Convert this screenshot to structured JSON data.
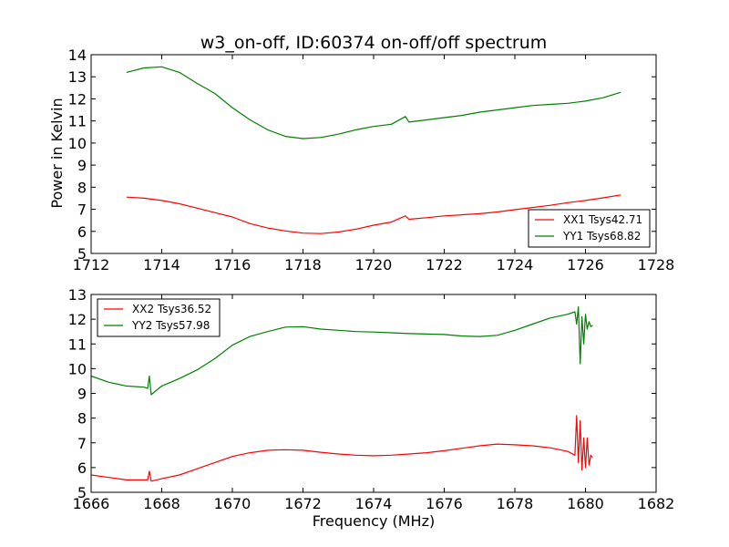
{
  "figure": {
    "title": "w3_on-off, ID:60374 on-off/off spectrum",
    "ylabel": "Power in Kelvin",
    "xlabel": "Frequency (MHz)"
  },
  "chart_data": [
    {
      "type": "line",
      "title": "w3_on-off, ID:60374 on-off/off spectrum",
      "xlabel": "",
      "ylabel": "Power in Kelvin",
      "xlim": [
        1712,
        1728
      ],
      "ylim": [
        5,
        14
      ],
      "xticks": [
        1712,
        1714,
        1716,
        1718,
        1720,
        1722,
        1724,
        1726,
        1728
      ],
      "yticks": [
        5,
        6,
        7,
        8,
        9,
        10,
        11,
        12,
        13,
        14
      ],
      "grid": false,
      "legend_position": "lower-right",
      "series": [
        {
          "name": "XX1 Tsys42.71",
          "color": "#ff0000",
          "x": [
            1713.0,
            1713.5,
            1714.0,
            1714.5,
            1715.0,
            1715.5,
            1716.0,
            1716.5,
            1717.0,
            1717.5,
            1718.0,
            1718.5,
            1719.0,
            1719.5,
            1720.0,
            1720.5,
            1720.9,
            1721.0,
            1721.5,
            1722.0,
            1722.5,
            1723.0,
            1723.5,
            1724.0,
            1724.5,
            1725.0,
            1725.5,
            1726.0,
            1726.5,
            1727.0
          ],
          "y": [
            7.55,
            7.5,
            7.4,
            7.25,
            7.05,
            6.85,
            6.65,
            6.35,
            6.15,
            6.02,
            5.92,
            5.9,
            5.97,
            6.1,
            6.28,
            6.42,
            6.7,
            6.55,
            6.62,
            6.7,
            6.75,
            6.8,
            6.88,
            6.98,
            7.08,
            7.18,
            7.3,
            7.4,
            7.52,
            7.65
          ]
        },
        {
          "name": "YY1 Tsys68.82",
          "color": "#008000",
          "x": [
            1713.0,
            1713.5,
            1714.0,
            1714.5,
            1715.0,
            1715.5,
            1716.0,
            1716.5,
            1717.0,
            1717.5,
            1718.0,
            1718.5,
            1719.0,
            1719.5,
            1720.0,
            1720.5,
            1720.9,
            1721.0,
            1721.5,
            1722.0,
            1722.5,
            1723.0,
            1723.5,
            1724.0,
            1724.5,
            1725.0,
            1725.5,
            1726.0,
            1726.5,
            1727.0
          ],
          "y": [
            13.2,
            13.4,
            13.45,
            13.2,
            12.7,
            12.25,
            11.6,
            11.05,
            10.6,
            10.3,
            10.2,
            10.25,
            10.4,
            10.6,
            10.75,
            10.85,
            11.2,
            10.95,
            11.05,
            11.15,
            11.25,
            11.4,
            11.5,
            11.6,
            11.7,
            11.75,
            11.8,
            11.9,
            12.05,
            12.3
          ]
        }
      ]
    },
    {
      "type": "line",
      "title": "",
      "xlabel": "Frequency (MHz)",
      "ylabel": "",
      "xlim": [
        1666,
        1682
      ],
      "ylim": [
        5,
        13
      ],
      "xticks": [
        1666,
        1668,
        1670,
        1672,
        1674,
        1676,
        1678,
        1680,
        1682
      ],
      "yticks": [
        5,
        6,
        7,
        8,
        9,
        10,
        11,
        12,
        13
      ],
      "grid": false,
      "legend_position": "upper-left",
      "series": [
        {
          "name": "XX2 Tsys36.52",
          "color": "#ff0000",
          "x": [
            1666.0,
            1666.5,
            1667.0,
            1667.5,
            1667.6,
            1667.65,
            1667.7,
            1668.0,
            1668.5,
            1669.0,
            1669.5,
            1670.0,
            1670.5,
            1671.0,
            1671.5,
            1672.0,
            1672.5,
            1673.0,
            1673.5,
            1674.0,
            1674.5,
            1675.0,
            1675.5,
            1676.0,
            1676.5,
            1677.0,
            1677.5,
            1678.0,
            1678.5,
            1679.0,
            1679.5,
            1679.7,
            1679.75,
            1679.8,
            1679.85,
            1679.9,
            1679.95,
            1680.0,
            1680.05,
            1680.1,
            1680.15,
            1680.2
          ],
          "y": [
            5.7,
            5.6,
            5.5,
            5.5,
            5.5,
            5.85,
            5.45,
            5.55,
            5.7,
            5.95,
            6.2,
            6.45,
            6.6,
            6.7,
            6.72,
            6.7,
            6.62,
            6.55,
            6.5,
            6.48,
            6.5,
            6.55,
            6.6,
            6.68,
            6.78,
            6.88,
            6.95,
            6.92,
            6.88,
            6.8,
            6.65,
            6.5,
            8.1,
            6.2,
            7.9,
            5.9,
            7.2,
            6.0,
            7.2,
            6.1,
            6.5,
            6.4
          ]
        },
        {
          "name": "YY2 Tsys57.98",
          "color": "#008000",
          "x": [
            1666.0,
            1666.5,
            1667.0,
            1667.5,
            1667.6,
            1667.65,
            1667.7,
            1668.0,
            1668.5,
            1669.0,
            1669.5,
            1670.0,
            1670.5,
            1671.0,
            1671.5,
            1672.0,
            1672.5,
            1673.0,
            1673.5,
            1674.0,
            1674.5,
            1675.0,
            1675.5,
            1676.0,
            1676.5,
            1677.0,
            1677.5,
            1678.0,
            1678.5,
            1679.0,
            1679.5,
            1679.7,
            1679.75,
            1679.8,
            1679.85,
            1679.9,
            1679.95,
            1680.0,
            1680.05,
            1680.1,
            1680.15,
            1680.2
          ],
          "y": [
            9.7,
            9.45,
            9.3,
            9.25,
            9.2,
            9.7,
            8.95,
            9.3,
            9.6,
            9.95,
            10.4,
            10.95,
            11.3,
            11.5,
            11.68,
            11.7,
            11.6,
            11.55,
            11.5,
            11.48,
            11.45,
            11.42,
            11.4,
            11.38,
            11.32,
            11.3,
            11.35,
            11.55,
            11.8,
            12.05,
            12.2,
            12.3,
            11.8,
            12.5,
            10.2,
            12.1,
            11.0,
            12.2,
            11.6,
            11.9,
            11.7,
            11.75
          ]
        }
      ]
    }
  ]
}
